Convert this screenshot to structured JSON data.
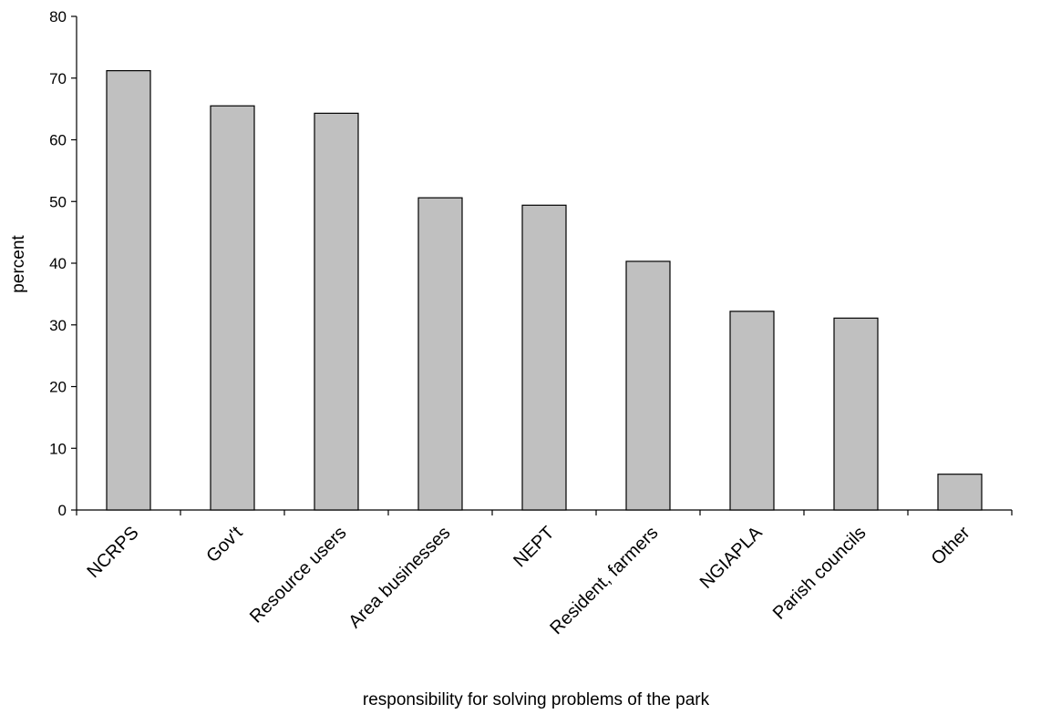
{
  "chart_data": {
    "type": "bar",
    "categories": [
      "NCRPS",
      "Gov't",
      "Resource users",
      "Area businesses",
      "NEPT",
      "Resident, farmers",
      "NGIAPLA",
      "Parish councils",
      "Other"
    ],
    "values": [
      71.2,
      65.5,
      64.3,
      50.6,
      49.4,
      40.3,
      32.2,
      31.1,
      5.8
    ],
    "title": "",
    "xlabel": "responsibility for solving problems of the park",
    "ylabel": "percent",
    "ylim": [
      0,
      80
    ],
    "yticks": [
      0,
      10,
      20,
      30,
      40,
      50,
      60,
      70,
      80
    ],
    "grid": false,
    "legend": "none",
    "colors": {
      "bar_fill": "#c0c0c0",
      "bar_stroke": "#000000",
      "axis": "#000000"
    }
  }
}
